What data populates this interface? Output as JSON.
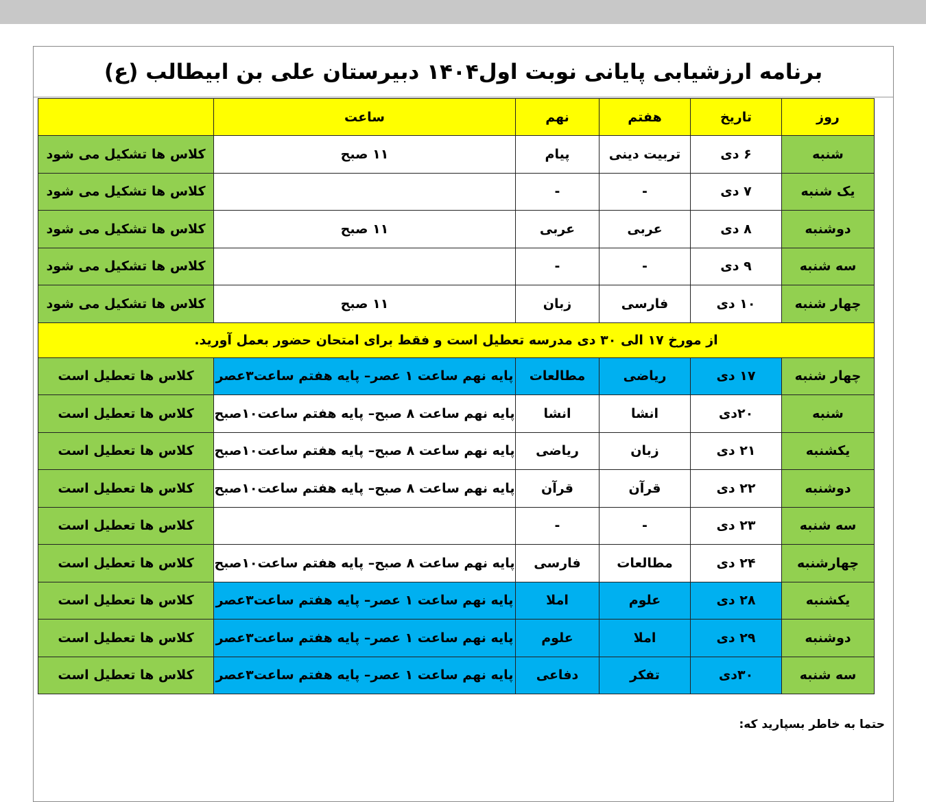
{
  "title": "برنامه ارزشیابی پایانی نوبت اول۱۴۰۴ دبیرستان علی بن ابیطالب (ع)",
  "headers": {
    "day": "روز",
    "date": "تاریخ",
    "seventh": "هفتم",
    "ninth": "نهم",
    "time": "ساعت",
    "status": ""
  },
  "colors": {
    "header": "#ffff00",
    "day": "#92d050",
    "highlight": "#00b0f0"
  },
  "rows_before": [
    {
      "day": "شنبه",
      "date": "۶ دی",
      "seventh": "تربیت دینی",
      "ninth": "پیام",
      "time": "۱۱ صبح",
      "status": "کلاس ها تشکیل می شود",
      "hl": false
    },
    {
      "day": "یک شنبه",
      "date": "۷ دی",
      "seventh": "-",
      "ninth": "-",
      "time": "",
      "status": "کلاس ها تشکیل می شود",
      "hl": false
    },
    {
      "day": "دوشنبه",
      "date": "۸ دی",
      "seventh": "عربی",
      "ninth": "عربی",
      "time": "۱۱ صبح",
      "status": "کلاس ها تشکیل می شود",
      "hl": false
    },
    {
      "day": "سه شنبه",
      "date": "۹ دی",
      "seventh": "-",
      "ninth": "-",
      "time": "",
      "status": "کلاس ها تشکیل می شود",
      "hl": false
    },
    {
      "day": "چهار شنبه",
      "date": "۱۰ دی",
      "seventh": "فارسی",
      "ninth": "زبان",
      "time": "۱۱ صبح",
      "status": "کلاس ها تشکیل می شود",
      "hl": false
    }
  ],
  "notice": "از مورخ ۱۷ الی ۳۰ دی مدرسه تعطیل است و فقط برای امتحان حضور بعمل آورید.",
  "rows_after": [
    {
      "day": "چهار شنبه",
      "date": "۱۷ دی",
      "seventh": "ریاضی",
      "ninth": "مطالعات",
      "time": "پایه نهم ساعت ۱ عصر– پایه هفتم ساعت۳عصر",
      "status": "کلاس ها تعطیل است",
      "hl": true
    },
    {
      "day": "شنبه",
      "date": "۲۰دی",
      "seventh": "انشا",
      "ninth": "انشا",
      "time": "پایه نهم ساعت ۸ صبح– پایه هفتم ساعت۱۰صبح",
      "status": "کلاس ها تعطیل است",
      "hl": false
    },
    {
      "day": "یکشنبه",
      "date": "۲۱ دی",
      "seventh": "زبان",
      "ninth": "ریاضی",
      "time": "پایه نهم ساعت ۸ صبح– پایه هفتم ساعت۱۰صبح",
      "status": "کلاس ها تعطیل است",
      "hl": false
    },
    {
      "day": "دوشنبه",
      "date": "۲۲ دی",
      "seventh": "قرآن",
      "ninth": "قرآن",
      "time": "پایه نهم ساعت ۸ صبح– پایه هفتم ساعت۱۰صبح",
      "status": "کلاس ها تعطیل است",
      "hl": false
    },
    {
      "day": "سه شنبه",
      "date": "۲۳ دی",
      "seventh": "-",
      "ninth": "-",
      "time": "",
      "status": "کلاس ها تعطیل است",
      "hl": false
    },
    {
      "day": "چهارشنبه",
      "date": "۲۴ دی",
      "seventh": "مطالعات",
      "ninth": "فارسی",
      "time": "پایه نهم ساعت ۸ صبح– پایه هفتم ساعت۱۰صبح",
      "status": "کلاس ها تعطیل است",
      "hl": false
    },
    {
      "day": "یکشنبه",
      "date": "۲۸ دی",
      "seventh": "علوم",
      "ninth": "املا",
      "time": "پایه نهم ساعت ۱ عصر– پایه هفتم ساعت۳عصر",
      "status": "کلاس ها تعطیل است",
      "hl": true
    },
    {
      "day": "دوشنبه",
      "date": "۲۹ دی",
      "seventh": "املا",
      "ninth": "علوم",
      "time": "پایه نهم ساعت ۱ عصر– پایه هفتم ساعت۳عصر",
      "status": "کلاس ها تعطیل است",
      "hl": true
    },
    {
      "day": "سه شنبه",
      "date": "۳۰دی",
      "seventh": "تفکر",
      "ninth": "دفاعی",
      "time": "پایه نهم ساعت ۱ عصر– پایه هفتم ساعت۳عصر",
      "status": "کلاس ها تعطیل است",
      "hl": true
    }
  ],
  "footer": "حتما به خاطر بسپارید که:"
}
